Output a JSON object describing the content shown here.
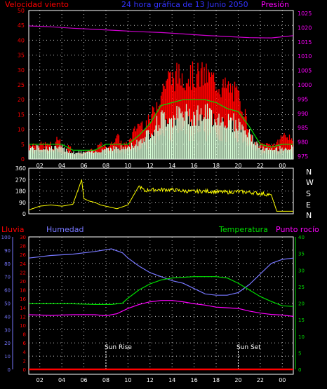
{
  "header": {
    "left_label": "Velocidad viento",
    "center_label": "24 hora gráfica de 13 Junio 2050",
    "right_label": "Presión"
  },
  "lower_header": {
    "rain_label": "Lluvia",
    "humidity_label": "Humedad",
    "temperature_label": "Temperatura",
    "dewpoint_label": "Punto rocío"
  },
  "direction_letters": [
    "N",
    "W",
    "S",
    "E",
    "N"
  ],
  "x_ticks": [
    "02",
    "04",
    "06",
    "08",
    "10",
    "12",
    "14",
    "16",
    "18",
    "20",
    "22",
    "00"
  ],
  "annotations": {
    "sunrise": "Sun Rise",
    "sunset": "Sun Set"
  },
  "colors": {
    "gust": "#ff0000",
    "avg_wind": "#00dd00",
    "wind_fill": "#d8ffd8",
    "pressure": "#cc00cc",
    "direction": "#ffff00",
    "humidity": "#7777ff",
    "temperature": "#00dd00",
    "dewpoint": "#ff00ff",
    "rain": "#ff0000",
    "grid": "#ffffff",
    "frame": "#ffffff"
  },
  "chart_data": [
    {
      "type": "line",
      "name": "wind-and-pressure",
      "x_ticks": [
        "02",
        "04",
        "06",
        "08",
        "10",
        "12",
        "14",
        "16",
        "18",
        "20",
        "22",
        "00"
      ],
      "xlim": [
        1,
        25
      ],
      "y_left": {
        "label": "Velocidad viento",
        "ticks": [
          0,
          5,
          10,
          15,
          20,
          25,
          30,
          35,
          40,
          45,
          50
        ],
        "lim": [
          0,
          50
        ]
      },
      "y_right": {
        "label": "Presión",
        "ticks": [
          975,
          980,
          985,
          990,
          995,
          1000,
          1005,
          1010,
          1015,
          1020,
          1025
        ],
        "lim": [
          974,
          1026
        ]
      },
      "gust_envelope": [
        [
          1,
          5
        ],
        [
          2,
          5
        ],
        [
          3,
          5
        ],
        [
          3.3,
          2
        ],
        [
          3.6,
          8
        ],
        [
          4,
          5
        ],
        [
          4.3,
          2
        ],
        [
          4.7,
          5
        ],
        [
          5,
          1
        ],
        [
          5.5,
          2
        ],
        [
          6,
          2
        ],
        [
          6.5,
          3
        ],
        [
          7,
          3
        ],
        [
          7.5,
          5
        ],
        [
          8,
          4
        ],
        [
          8.5,
          5
        ],
        [
          9,
          8
        ],
        [
          9.5,
          5
        ],
        [
          10,
          5
        ],
        [
          10.5,
          9
        ],
        [
          11,
          12
        ],
        [
          11.5,
          12
        ],
        [
          12,
          13
        ],
        [
          12.5,
          18
        ],
        [
          13,
          22
        ],
        [
          13.5,
          27
        ],
        [
          14,
          27
        ],
        [
          14.5,
          28
        ],
        [
          15,
          28
        ],
        [
          15.5,
          28
        ],
        [
          16,
          28
        ],
        [
          16.5,
          28
        ],
        [
          17,
          28
        ],
        [
          17.5,
          27
        ],
        [
          18,
          26
        ],
        [
          18.5,
          24
        ],
        [
          19,
          24
        ],
        [
          19.5,
          23
        ],
        [
          20,
          21
        ],
        [
          20.5,
          17
        ],
        [
          21,
          9
        ],
        [
          21.5,
          5
        ],
        [
          22,
          5
        ],
        [
          22.5,
          5
        ],
        [
          23,
          5
        ],
        [
          23.5,
          5
        ],
        [
          24,
          8
        ],
        [
          24.5,
          8
        ],
        [
          25,
          5
        ]
      ],
      "avg_wind": [
        [
          1,
          5
        ],
        [
          2,
          5
        ],
        [
          3,
          5
        ],
        [
          4,
          5
        ],
        [
          5,
          3
        ],
        [
          6,
          3
        ],
        [
          7,
          3
        ],
        [
          8,
          5
        ],
        [
          9,
          5
        ],
        [
          10,
          5
        ],
        [
          11,
          8
        ],
        [
          12,
          12
        ],
        [
          12.5,
          15
        ],
        [
          13,
          18
        ],
        [
          14,
          19
        ],
        [
          15,
          20
        ],
        [
          16,
          20
        ],
        [
          17,
          20
        ],
        [
          18,
          19
        ],
        [
          19,
          17
        ],
        [
          20,
          16
        ],
        [
          21,
          11
        ],
        [
          22,
          5
        ],
        [
          23,
          4
        ],
        [
          24,
          5
        ],
        [
          25,
          5
        ]
      ],
      "pressure": [
        [
          1,
          1020.6
        ],
        [
          3,
          1020.3
        ],
        [
          5,
          1019.8
        ],
        [
          7,
          1019.4
        ],
        [
          9,
          1019.0
        ],
        [
          11,
          1018.6
        ],
        [
          13,
          1018.3
        ],
        [
          15,
          1017.8
        ],
        [
          17,
          1017.3
        ],
        [
          19,
          1016.9
        ],
        [
          21,
          1016.5
        ],
        [
          23,
          1016.4
        ],
        [
          25,
          1017.2
        ]
      ]
    },
    {
      "type": "line",
      "name": "wind-direction",
      "y_ticks": [
        0,
        90,
        180,
        270,
        360
      ],
      "ylim": [
        0,
        360
      ],
      "values": [
        [
          1,
          30
        ],
        [
          2,
          60
        ],
        [
          3,
          70
        ],
        [
          4,
          60
        ],
        [
          5,
          75
        ],
        [
          5.8,
          270
        ],
        [
          6,
          120
        ],
        [
          6.5,
          100
        ],
        [
          7,
          90
        ],
        [
          7.5,
          70
        ],
        [
          8,
          60
        ],
        [
          9,
          40
        ],
        [
          10,
          70
        ],
        [
          11,
          220
        ],
        [
          11.5,
          180
        ],
        [
          12,
          190
        ],
        [
          13,
          190
        ],
        [
          14,
          190
        ],
        [
          15,
          180
        ],
        [
          16,
          175
        ],
        [
          17,
          180
        ],
        [
          18,
          175
        ],
        [
          19,
          170
        ],
        [
          20,
          175
        ],
        [
          21,
          170
        ],
        [
          22,
          160
        ],
        [
          23,
          150
        ],
        [
          23.5,
          20
        ],
        [
          25,
          20
        ]
      ]
    },
    {
      "type": "line",
      "name": "humidity-temperature-dewpoint-rain",
      "y_humidity": {
        "label": "Humedad",
        "ticks": [
          0,
          10,
          20,
          30,
          40,
          50,
          60,
          70,
          80,
          90,
          100
        ],
        "lim": [
          0,
          100
        ]
      },
      "y_rain": {
        "label": "Lluvia",
        "ticks": [
          0,
          2,
          4,
          6,
          8,
          10,
          12,
          14,
          16,
          18,
          20,
          22,
          24,
          26,
          28,
          30
        ],
        "lim": [
          0,
          30
        ]
      },
      "y_temperature": {
        "label": "Temperatura",
        "ticks": [
          0,
          5,
          10,
          15,
          20,
          25,
          30,
          35,
          40
        ],
        "lim": [
          0,
          40
        ]
      },
      "humidity": [
        [
          1,
          84
        ],
        [
          3,
          86
        ],
        [
          5,
          87
        ],
        [
          7,
          89
        ],
        [
          8.5,
          91
        ],
        [
          9.5,
          88
        ],
        [
          10,
          84
        ],
        [
          11,
          78
        ],
        [
          12,
          73
        ],
        [
          13,
          70
        ],
        [
          14,
          67
        ],
        [
          15,
          65
        ],
        [
          16,
          61
        ],
        [
          17,
          57
        ],
        [
          18,
          56
        ],
        [
          19,
          56
        ],
        [
          20,
          58
        ],
        [
          21,
          64
        ],
        [
          22,
          72
        ],
        [
          23,
          80
        ],
        [
          24,
          83
        ],
        [
          25,
          84
        ]
      ],
      "temperature": [
        [
          1,
          19.8
        ],
        [
          3,
          19.8
        ],
        [
          5,
          19.8
        ],
        [
          7,
          19.6
        ],
        [
          8.5,
          19.6
        ],
        [
          9.5,
          20
        ],
        [
          10,
          21.5
        ],
        [
          11,
          24
        ],
        [
          12,
          25.8
        ],
        [
          13,
          27
        ],
        [
          14,
          27.6
        ],
        [
          15,
          27.8
        ],
        [
          16,
          28
        ],
        [
          17,
          28
        ],
        [
          18,
          28
        ],
        [
          19,
          27.6
        ],
        [
          20,
          26
        ],
        [
          21,
          24
        ],
        [
          22,
          22
        ],
        [
          23,
          20.5
        ],
        [
          24,
          19.2
        ],
        [
          25,
          19
        ]
      ],
      "dewpoint": [
        [
          1,
          16.5
        ],
        [
          3,
          16.3
        ],
        [
          5,
          16.5
        ],
        [
          7,
          16.5
        ],
        [
          8,
          16.2
        ],
        [
          9,
          16.8
        ],
        [
          10,
          18.4
        ],
        [
          11,
          19.6
        ],
        [
          12,
          20.4
        ],
        [
          13,
          20.8
        ],
        [
          14,
          20.8
        ],
        [
          15,
          20.4
        ],
        [
          16,
          19.8
        ],
        [
          17,
          19.4
        ],
        [
          18,
          18.8
        ],
        [
          19,
          18.6
        ],
        [
          20,
          18.4
        ],
        [
          21,
          17.6
        ],
        [
          22,
          17
        ],
        [
          23,
          16.6
        ],
        [
          24,
          16.4
        ],
        [
          25,
          16
        ]
      ],
      "rain": [
        [
          1,
          0
        ],
        [
          25,
          0
        ]
      ],
      "sunrise_x": 8,
      "sunset_x": 20
    }
  ]
}
